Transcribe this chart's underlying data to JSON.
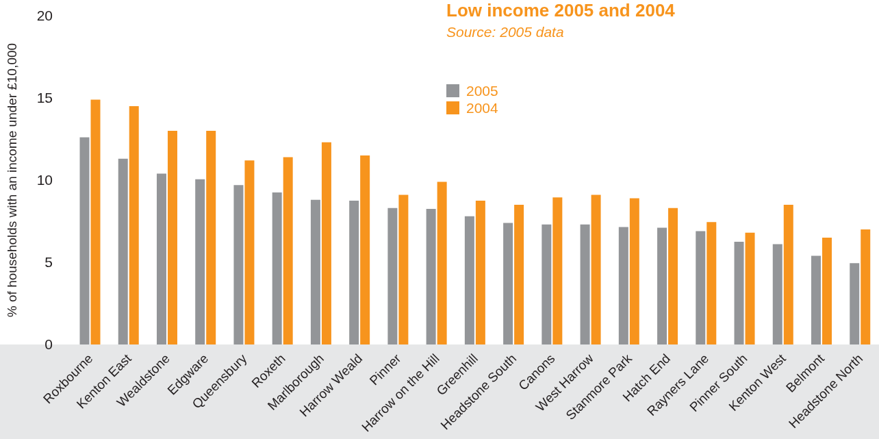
{
  "chart_data": {
    "type": "bar",
    "title": "Low income 2005 and 2004",
    "subtitle": "Source: 2005 data",
    "ylabel": "% of households with an income under £10,000",
    "categories": [
      "Roxbourne",
      "Kenton East",
      "Wealdstone",
      "Edgware",
      "Queensbury",
      "Roxeth",
      "Marlborough",
      "Harrow Weald",
      "Pinner",
      "Harrow on the Hill",
      "Greenhill",
      "Headstone South",
      "Canons",
      "West Harrow",
      "Stanmore Park",
      "Hatch End",
      "Rayners Lane",
      "Pinner South",
      "Kenton West",
      "Belmont",
      "Headstone North"
    ],
    "series": [
      {
        "name": "2005",
        "color": "#939598",
        "values": [
          12.6,
          11.3,
          10.4,
          10.05,
          9.7,
          9.25,
          8.8,
          8.75,
          8.3,
          8.25,
          7.8,
          7.4,
          7.3,
          7.3,
          7.15,
          7.1,
          6.9,
          6.25,
          6.1,
          5.4,
          4.95
        ]
      },
      {
        "name": "2004",
        "color": "#f7941d",
        "values": [
          14.9,
          14.5,
          13.0,
          13.0,
          11.2,
          11.4,
          12.3,
          11.5,
          9.1,
          9.9,
          8.75,
          8.5,
          8.95,
          9.1,
          8.9,
          8.3,
          7.45,
          6.8,
          8.5,
          6.5,
          7.0
        ]
      }
    ],
    "ylim": [
      0,
      20
    ],
    "yticks": [
      0,
      5,
      10,
      15,
      20
    ],
    "grid": false,
    "legend": "top"
  }
}
